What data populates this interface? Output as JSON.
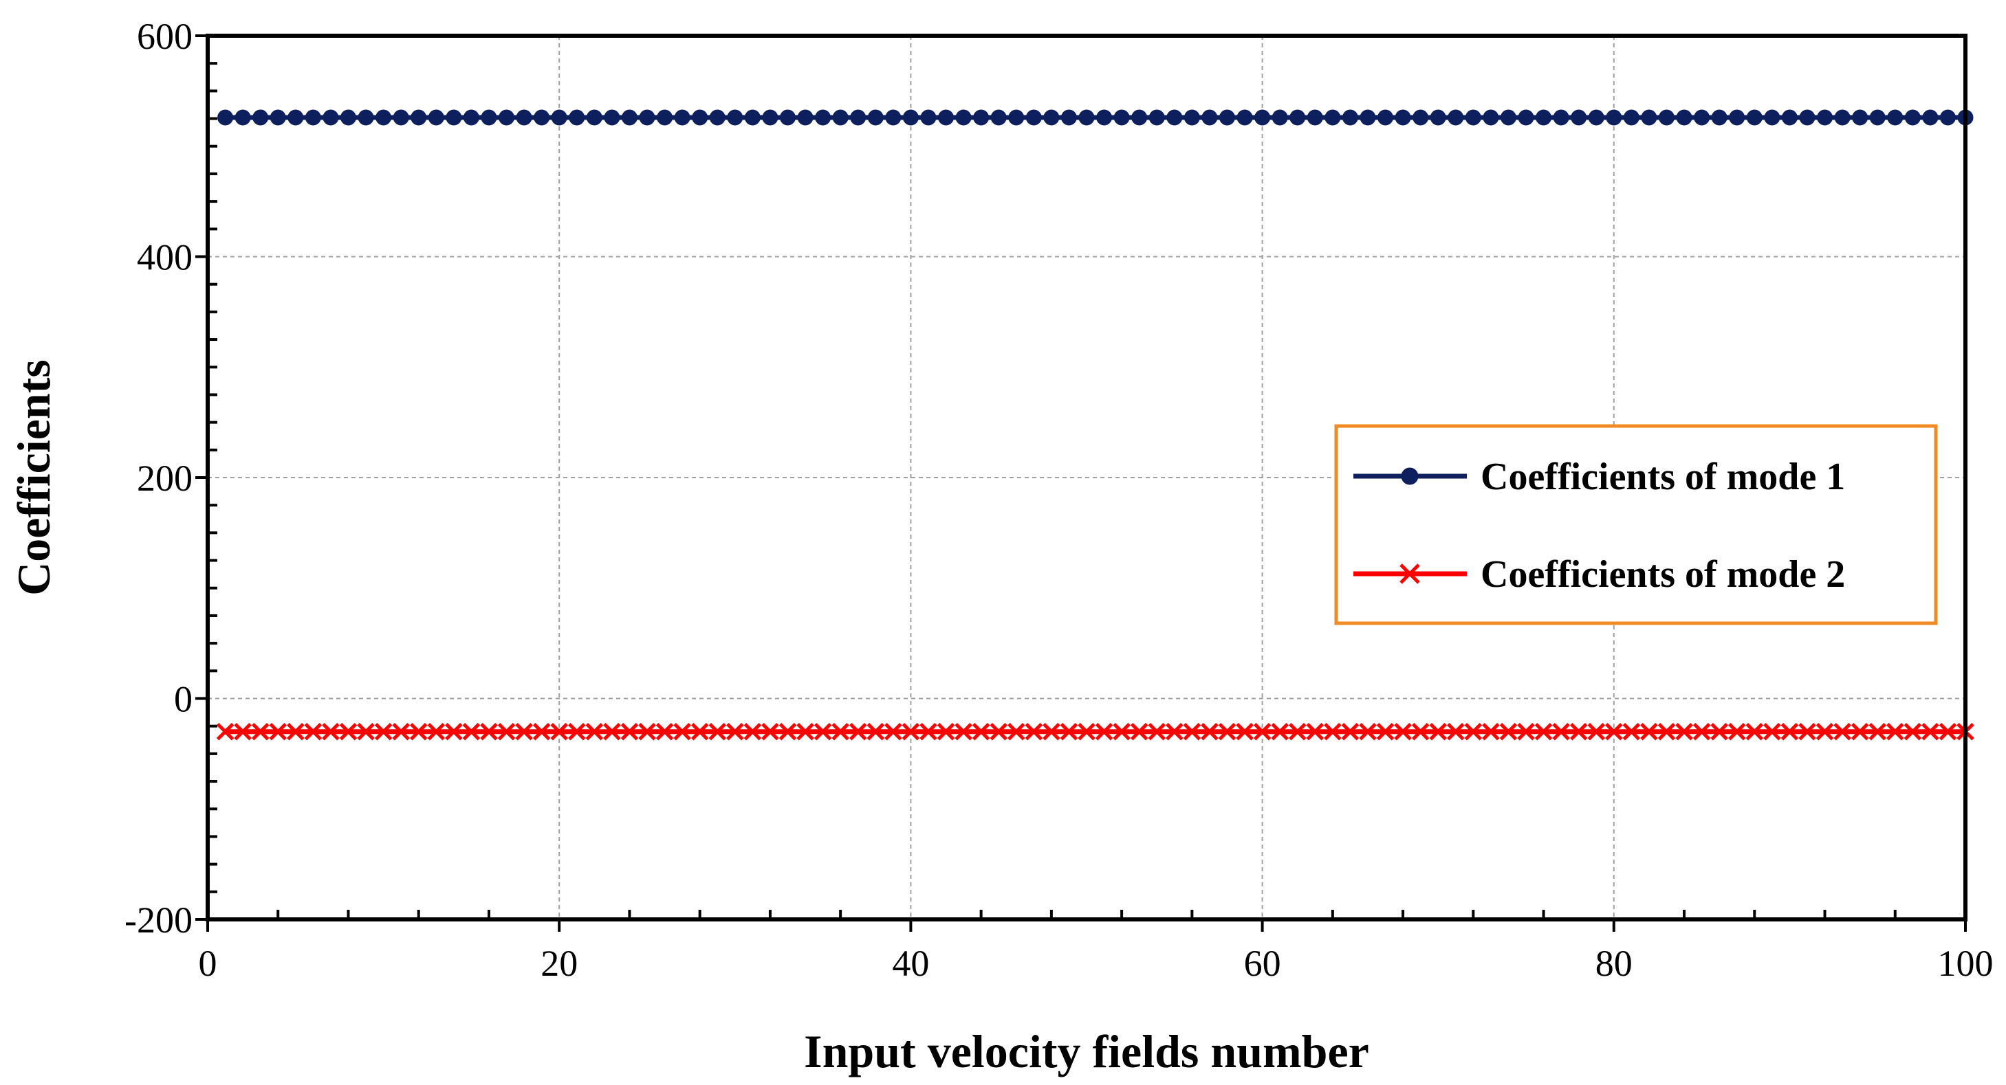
{
  "chart_data": {
    "type": "line",
    "title": "",
    "xlabel": "Input velocity fields number",
    "ylabel": "Coefficients",
    "xlim": [
      0,
      100
    ],
    "ylim": [
      -200,
      600
    ],
    "x_ticks": [
      0,
      20,
      40,
      60,
      80,
      100
    ],
    "y_ticks": [
      -200,
      0,
      200,
      400,
      600
    ],
    "x_tick_labels": [
      "0",
      "20",
      "40",
      "60",
      "80",
      "100"
    ],
    "y_tick_labels": [
      "-200",
      "0",
      "200",
      "400",
      "600"
    ],
    "grid": true,
    "legend_position": "right-middle",
    "x_start": 1,
    "x_end": 100,
    "series": [
      {
        "name": "Coefficients of mode 1",
        "value": 526,
        "color": "#0d1f5c",
        "marker": "circle"
      },
      {
        "name": "Coefficients of mode 2",
        "value": -30,
        "color": "#ff0000",
        "marker": "x"
      }
    ],
    "legend_border_color": "#f08a24"
  }
}
